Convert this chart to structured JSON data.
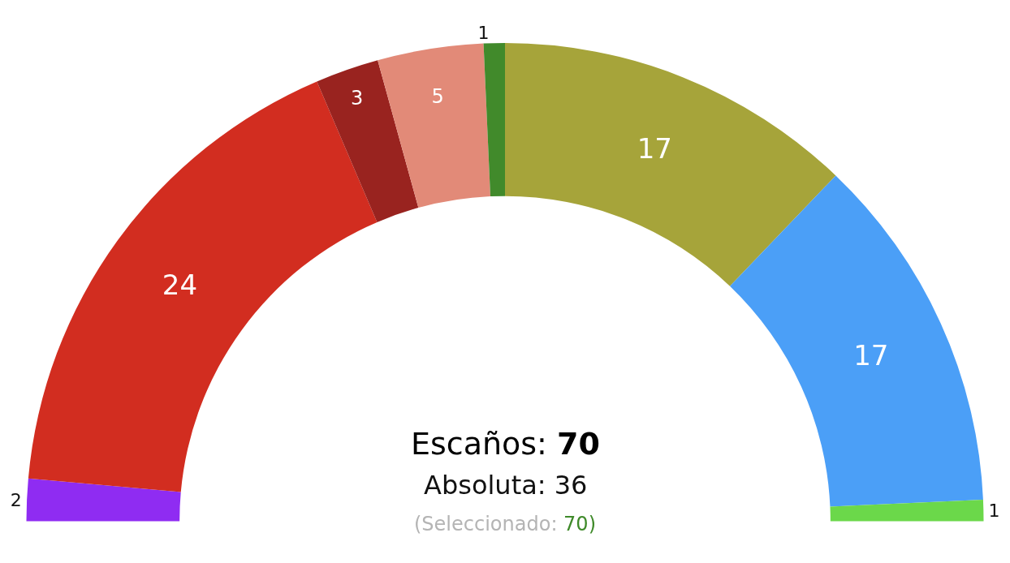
{
  "chart_data": {
    "type": "donut",
    "categories": [
      null,
      null,
      null,
      null,
      null,
      null,
      null,
      null
    ],
    "values": [
      2,
      24,
      3,
      5,
      1,
      17,
      17,
      1
    ],
    "colors": [
      "#8f2cf2",
      "#d22d20",
      "#99231f",
      "#e28a78",
      "#418a2b",
      "#a6a43a",
      "#4b9ff7",
      "#6bd84a"
    ],
    "data_labels": true,
    "annotations": [
      "Escaños: 70",
      "Absoluta: 36",
      "(Seleccionado: 70)"
    ]
  }
}
